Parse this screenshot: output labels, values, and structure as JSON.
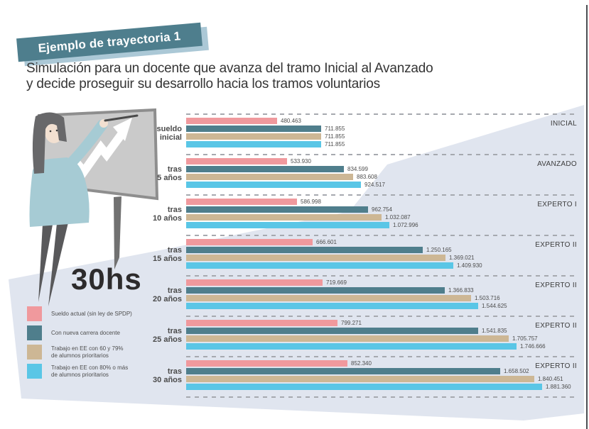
{
  "banner": {
    "label": "Ejemplo de trayectoria 1"
  },
  "subtitle": {
    "line1": "Simulación para un docente que avanza del tramo Inicial al Avanzado",
    "line2": "y decide proseguir su desarrollo hacia los tramos voluntarios"
  },
  "hours_label": "30hs",
  "colors": {
    "banner_teal": "#4e7e8d",
    "banner_shadow": "#abc8d6",
    "background_polygon": "#e0e5ef",
    "series_pink": "#f0999d",
    "series_teal": "#4f7e8c",
    "series_tan": "#cdb795",
    "series_cyan": "#5ac6e6"
  },
  "legend": {
    "items": [
      {
        "color": "#f0999d",
        "label_lines": [
          "Sueldo actual (sin ley de SPDP)"
        ]
      },
      {
        "color": "#4f7e8c",
        "label_lines": [
          "Con nueva carrera docente"
        ]
      },
      {
        "color": "#cdb795",
        "label_lines": [
          "Trabajo en EE con 60 y 79%",
          "de alumnos prioritarios"
        ]
      },
      {
        "color": "#5ac6e6",
        "label_lines": [
          "Trabajo en EE con 80% o más",
          "de alumnos prioritarios"
        ]
      }
    ]
  },
  "chart_data": {
    "type": "bar",
    "orientation": "horizontal",
    "grid": "dashed horizontal separators between groups",
    "legend_position": "bottom-left",
    "x_max": 2060000,
    "categories": [
      [
        "sueldo",
        "inicial"
      ],
      [
        "tras",
        "5 años"
      ],
      [
        "tras",
        "10 años"
      ],
      [
        "tras",
        "15 años"
      ],
      [
        "tras",
        "20 años"
      ],
      [
        "tras",
        "25 años"
      ],
      [
        "tras",
        "30 años"
      ]
    ],
    "stage_labels": [
      "INICIAL",
      "AVANZADO",
      "EXPERTO I",
      "EXPERTO II",
      "EXPERTO II",
      "EXPERTO II",
      "EXPERTO II"
    ],
    "series": [
      {
        "name": "Sueldo actual (sin ley de SPDP)",
        "color": "#f0999d",
        "values": [
          480463,
          533930,
          586998,
          666601,
          719669,
          799271,
          852340
        ],
        "display": [
          "480.463",
          "533.930",
          "586.998",
          "666.601",
          "719.669",
          "799.271",
          "852.340"
        ]
      },
      {
        "name": "Con nueva carrera docente",
        "color": "#4f7e8c",
        "values": [
          711855,
          834599,
          962754,
          1250165,
          1366833,
          1541835,
          1658502
        ],
        "display": [
          "711.855",
          "834.599",
          "962.754",
          "1.250.165",
          "1.366.833",
          "1.541.835",
          "1.658.502"
        ]
      },
      {
        "name": "Trabajo en EE con 60 y 79% de alumnos prioritarios",
        "color": "#cdb795",
        "values": [
          711855,
          883608,
          1032087,
          1369021,
          1503716,
          1705757,
          1840451
        ],
        "display": [
          "711.855",
          "883.608",
          "1.032.087",
          "1.369.021",
          "1.503.716",
          "1.705.757",
          "1.840.451"
        ]
      },
      {
        "name": "Trabajo en EE con 80% o más de alumnos prioritarios",
        "color": "#5ac6e6",
        "values": [
          711855,
          924517,
          1072996,
          1409930,
          1544625,
          1746666,
          1881360
        ],
        "display": [
          "711.855",
          "924.517",
          "1.072.996",
          "1.409.930",
          "1.544.625",
          "1.746.666",
          "1.881.360"
        ]
      }
    ]
  }
}
